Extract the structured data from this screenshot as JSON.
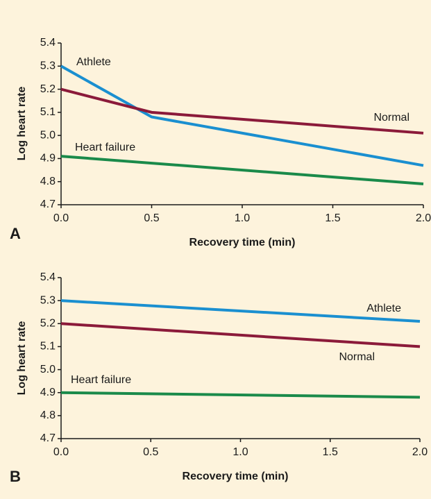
{
  "chart_data": [
    {
      "type": "line",
      "panel": "A",
      "xlabel": "Recovery time (min)",
      "ylabel": "Log heart rate",
      "xlim": [
        0,
        2
      ],
      "ylim": [
        4.7,
        5.4
      ],
      "xticks": [
        {
          "value": 0,
          "label": "0.0"
        },
        0.5,
        {
          "value": 1,
          "label": "1.0"
        },
        1.5,
        {
          "value": 2,
          "label": "2.0"
        }
      ],
      "yticks": [
        4.7,
        4.8,
        4.9,
        {
          "value": 5,
          "label": "5.0"
        },
        5.1,
        5.2,
        5.3,
        5.4
      ],
      "series": [
        {
          "name": "Athlete",
          "color": "#1a8fd0",
          "x": [
            0,
            0.5,
            2
          ],
          "values": [
            5.3,
            5.08,
            4.87
          ]
        },
        {
          "name": "Normal",
          "color": "#8b1a3a",
          "x": [
            0,
            0.5,
            2
          ],
          "values": [
            5.2,
            5.1,
            5.01
          ]
        },
        {
          "name": "Heart failure",
          "color": "#1a8a4a",
          "x": [
            0,
            2
          ],
          "values": [
            4.91,
            4.79
          ]
        }
      ]
    },
    {
      "type": "line",
      "panel": "B",
      "xlabel": "Recovery time (min)",
      "ylabel": "Log heart rate",
      "xlim": [
        0,
        2
      ],
      "ylim": [
        4.7,
        5.4
      ],
      "xticks": [
        {
          "value": 0,
          "label": "0.0"
        },
        0.5,
        {
          "value": 1,
          "label": "1.0"
        },
        1.5,
        {
          "value": 2,
          "label": "2.0"
        }
      ],
      "yticks": [
        4.7,
        4.8,
        4.9,
        {
          "value": 5,
          "label": "5.0"
        },
        5.1,
        5.2,
        5.3,
        5.4
      ],
      "series": [
        {
          "name": "Athlete",
          "color": "#1a8fd0",
          "x": [
            0,
            2
          ],
          "values": [
            5.3,
            5.21
          ]
        },
        {
          "name": "Normal",
          "color": "#8b1a3a",
          "x": [
            0,
            2
          ],
          "values": [
            5.2,
            5.1
          ]
        },
        {
          "name": "Heart failure",
          "color": "#1a8a4a",
          "x": [
            0,
            2
          ],
          "values": [
            4.9,
            4.88
          ]
        }
      ]
    }
  ]
}
